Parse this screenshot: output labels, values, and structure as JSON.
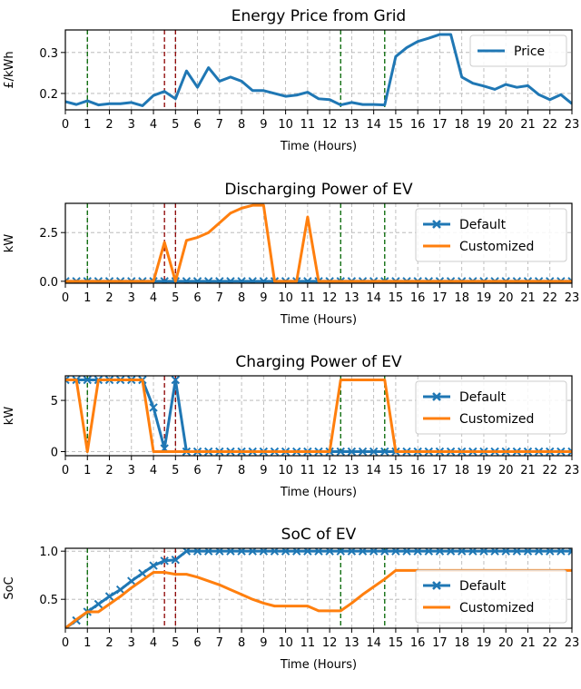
{
  "chart_data": [
    {
      "type": "line",
      "title": "Energy Price from Grid",
      "xlabel": "Time (Hours)",
      "ylabel": "£/kWh",
      "ylim": [
        0.16,
        0.355
      ],
      "yticks": [
        0.2,
        0.3
      ],
      "ytick_labels": [
        "0.2",
        "0.3"
      ],
      "legend": "top-right",
      "grid": true,
      "series": [
        {
          "name": "Price",
          "color": "#1f77b4",
          "marker": "none",
          "values": [
            0.18,
            0.173,
            0.182,
            0.172,
            0.175,
            0.175,
            0.178,
            0.17,
            0.195,
            0.205,
            0.187,
            0.255,
            0.215,
            0.263,
            0.23,
            0.24,
            0.23,
            0.207,
            0.207,
            0.2,
            0.193,
            0.196,
            0.203,
            0.187,
            0.185,
            0.172,
            0.178,
            0.173,
            0.173,
            0.172,
            0.29,
            0.312,
            0.327,
            0.335,
            0.344,
            0.344,
            0.24,
            0.225,
            0.218,
            0.21,
            0.222,
            0.215,
            0.219,
            0.197,
            0.185,
            0.197,
            0.175
          ]
        }
      ]
    },
    {
      "type": "line",
      "title": "Discharging Power of EV",
      "xlabel": "Time (Hours)",
      "ylabel": "kW",
      "ylim": [
        -0.1,
        4.0
      ],
      "yticks": [
        0,
        2.5
      ],
      "ytick_labels": [
        "0.0",
        "2.5"
      ],
      "legend": "top-right",
      "grid": true,
      "series": [
        {
          "name": "Default",
          "color": "#1f77b4",
          "marker": "x",
          "values": [
            0,
            0,
            0,
            0,
            0,
            0,
            0,
            0,
            0,
            0,
            0,
            0,
            0,
            0,
            0,
            0,
            0,
            0,
            0,
            0,
            0,
            0,
            0,
            0,
            0,
            0,
            0,
            0,
            0,
            0,
            0,
            0,
            0,
            0,
            0,
            0,
            0,
            0,
            0,
            0,
            0,
            0,
            0,
            0,
            0,
            0,
            0
          ]
        },
        {
          "name": "Customized",
          "color": "#ff7f0e",
          "marker": "none",
          "values": [
            0,
            0,
            0,
            0,
            0,
            0,
            0,
            0,
            0,
            2.0,
            0,
            2.1,
            2.25,
            2.5,
            3.0,
            3.5,
            3.75,
            3.9,
            3.9,
            0,
            0,
            0,
            3.3,
            0,
            0,
            0,
            0,
            0,
            0,
            0,
            0,
            0,
            0,
            0,
            0,
            0,
            0,
            0,
            0,
            0,
            0,
            0,
            0,
            0,
            0,
            0,
            0
          ]
        }
      ]
    },
    {
      "type": "line",
      "title": "Charging Power of EV",
      "xlabel": "Time (Hours)",
      "ylabel": "kW",
      "ylim": [
        -0.4,
        7.4
      ],
      "yticks": [
        0,
        5
      ],
      "ytick_labels": [
        "0",
        "5"
      ],
      "legend": "top-right",
      "grid": true,
      "series": [
        {
          "name": "Default",
          "color": "#1f77b4",
          "marker": "x",
          "values": [
            7,
            7,
            7,
            7,
            7,
            7,
            7,
            7,
            4.3,
            0.3,
            7,
            0,
            0,
            0,
            0,
            0,
            0,
            0,
            0,
            0,
            0,
            0,
            0,
            0,
            0,
            0,
            0,
            0,
            0,
            0,
            0,
            0,
            0,
            0,
            0,
            0,
            0,
            0,
            0,
            0,
            0,
            0,
            0,
            0,
            0,
            0,
            0
          ]
        },
        {
          "name": "Customized",
          "color": "#ff7f0e",
          "marker": "none",
          "values": [
            7,
            7,
            0,
            7,
            7,
            7,
            7,
            7,
            0,
            0,
            0,
            0,
            0,
            0,
            0,
            0,
            0,
            0,
            0,
            0,
            0,
            0,
            0,
            0,
            0,
            7,
            7,
            7,
            7,
            7,
            0,
            0,
            0,
            0,
            0,
            0,
            0,
            0,
            0,
            0,
            0,
            0,
            0,
            0,
            0,
            0,
            0
          ]
        }
      ]
    },
    {
      "type": "line",
      "title": "SoC of EV",
      "xlabel": "Time (Hours)",
      "ylabel": "SoC",
      "ylim": [
        0.2,
        1.03
      ],
      "yticks": [
        0.5,
        1.0
      ],
      "ytick_labels": [
        "0.5",
        "1.0"
      ],
      "legend": "bottom-right",
      "grid": true,
      "series": [
        {
          "name": "Default",
          "color": "#1f77b4",
          "marker": "x",
          "values": [
            0.2,
            0.28,
            0.37,
            0.45,
            0.53,
            0.6,
            0.69,
            0.77,
            0.85,
            0.9,
            0.91,
            1,
            1,
            1,
            1,
            1,
            1,
            1,
            1,
            1,
            1,
            1,
            1,
            1,
            1,
            1,
            1,
            1,
            1,
            1,
            1,
            1,
            1,
            1,
            1,
            1,
            1,
            1,
            1,
            1,
            1,
            1,
            1,
            1,
            1,
            1,
            1
          ]
        },
        {
          "name": "Customized",
          "color": "#ff7f0e",
          "marker": "none",
          "values": [
            0.2,
            0.29,
            0.37,
            0.37,
            0.45,
            0.53,
            0.62,
            0.7,
            0.78,
            0.78,
            0.76,
            0.76,
            0.73,
            0.69,
            0.65,
            0.6,
            0.55,
            0.5,
            0.46,
            0.43,
            0.43,
            0.43,
            0.43,
            0.38,
            0.38,
            0.38,
            0.46,
            0.55,
            0.63,
            0.71,
            0.8,
            0.8,
            0.8,
            0.8,
            0.8,
            0.8,
            0.8,
            0.8,
            0.8,
            0.8,
            0.8,
            0.8,
            0.8,
            0.8,
            0.8,
            0.8,
            0.8
          ]
        }
      ]
    }
  ],
  "x_step_hours": 0.5,
  "xticks": [
    0,
    1,
    2,
    3,
    4,
    5,
    6,
    7,
    8,
    9,
    10,
    11,
    12,
    13,
    14,
    15,
    16,
    17,
    18,
    19,
    20,
    21,
    22,
    23
  ],
  "vlines": [
    {
      "x": 1,
      "color": "#006400"
    },
    {
      "x": 4.5,
      "color": "#8b0000"
    },
    {
      "x": 5,
      "color": "#8b0000"
    },
    {
      "x": 12.5,
      "color": "#006400"
    },
    {
      "x": 14.5,
      "color": "#006400"
    }
  ]
}
